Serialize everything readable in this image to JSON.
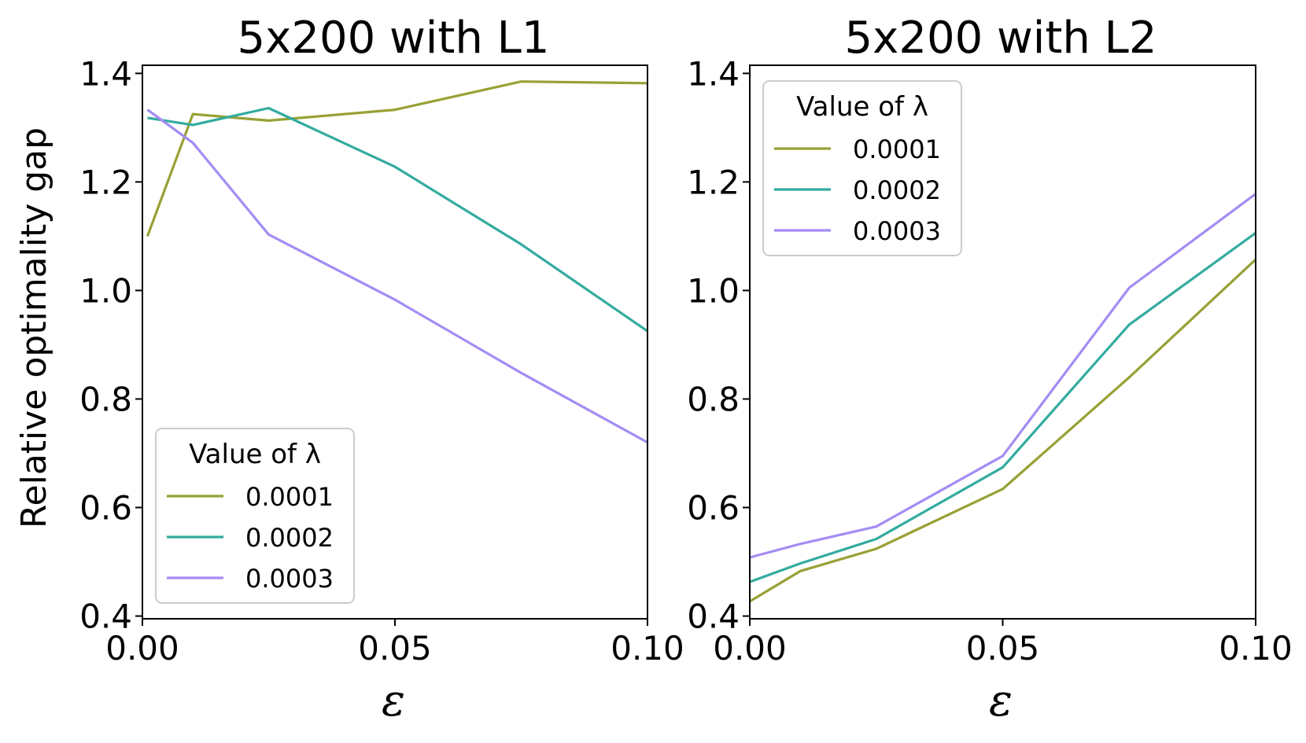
{
  "chart_data": [
    {
      "type": "line",
      "title": "5x200 with L1",
      "xlabel": "ε",
      "ylabel": "Relative optimality gap",
      "xlim": [
        0.0,
        0.1
      ],
      "ylim": [
        0.395,
        1.415
      ],
      "xticks": [
        0.0,
        0.05,
        0.1
      ],
      "xtick_labels": [
        "0.00",
        "0.05",
        "0.10"
      ],
      "yticks": [
        0.4,
        0.6,
        0.8,
        1.0,
        1.2,
        1.4
      ],
      "ytick_labels": [
        "0.4",
        "0.6",
        "0.8",
        "1.0",
        "1.2",
        "1.4"
      ],
      "legend": {
        "title": "Value of λ",
        "position": "lower-left"
      },
      "x": [
        0.001,
        0.01,
        0.025,
        0.05,
        0.075,
        0.1
      ],
      "series": [
        {
          "name": "0.0001",
          "color": "#98a135",
          "values": [
            1.1,
            1.325,
            1.313,
            1.333,
            1.385,
            1.382
          ]
        },
        {
          "name": "0.0002",
          "color": "#33ab9f",
          "values": [
            1.318,
            1.305,
            1.336,
            1.228,
            1.085,
            0.925
          ]
        },
        {
          "name": "0.0003",
          "color": "#a48cf4",
          "values": [
            1.333,
            1.272,
            1.103,
            0.983,
            0.848,
            0.72
          ]
        }
      ]
    },
    {
      "type": "line",
      "title": "5x200 with L2",
      "xlabel": "ε",
      "ylabel": "",
      "xlim": [
        0.0,
        0.1
      ],
      "ylim": [
        0.395,
        1.415
      ],
      "xticks": [
        0.0,
        0.05,
        0.1
      ],
      "xtick_labels": [
        "0.00",
        "0.05",
        "0.10"
      ],
      "yticks": [
        0.4,
        0.6,
        0.8,
        1.0,
        1.2,
        1.4
      ],
      "ytick_labels": [
        "0.4",
        "0.6",
        "0.8",
        "1.0",
        "1.2",
        "1.4"
      ],
      "legend": {
        "title": "Value of λ",
        "position": "upper-left"
      },
      "x": [
        0.0,
        0.01,
        0.025,
        0.05,
        0.075,
        0.1
      ],
      "series": [
        {
          "name": "0.0001",
          "color": "#98a135",
          "values": [
            0.427,
            0.483,
            0.524,
            0.634,
            0.84,
            1.057
          ]
        },
        {
          "name": "0.0002",
          "color": "#33ab9f",
          "values": [
            0.463,
            0.497,
            0.542,
            0.674,
            0.937,
            1.106
          ]
        },
        {
          "name": "0.0003",
          "color": "#a48cf4",
          "values": [
            0.508,
            0.533,
            0.565,
            0.695,
            1.005,
            1.178
          ]
        }
      ]
    }
  ]
}
